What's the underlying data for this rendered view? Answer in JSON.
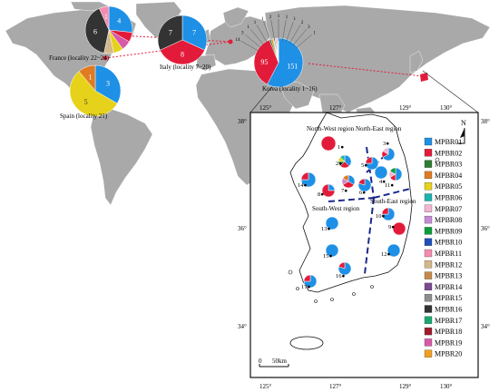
{
  "colors": {
    "MPBR01": "#1e90e6",
    "MPBR02": "#e31b3a",
    "MPBR03": "#2e7d32",
    "MPBR04": "#e07b22",
    "MPBR05": "#e6d21a",
    "MPBR06": "#1ab3b0",
    "MPBR07": "#f3b6d0",
    "MPBR08": "#c78ad6",
    "MPBR09": "#0b9d3a",
    "MPBR10": "#1f4fb8",
    "MPBR11": "#f48bb0",
    "MPBR12": "#d4b88a",
    "MPBR13": "#c58a4a",
    "MPBR14": "#7a4a8e",
    "MPBR15": "#8e8e8e",
    "MPBR16": "#333333",
    "MPBR17": "#18a870",
    "MPBR18": "#a01a2a",
    "MPBR19": "#d65aa8",
    "MPBR20": "#f0a020"
  },
  "legend": [
    "MPBR01",
    "MPBR02",
    "MPBR03",
    "MPBR04",
    "MPBR05",
    "MPBR06",
    "MPBR07",
    "MPBR08",
    "MPBR09",
    "MPBR10",
    "MPBR11",
    "MPBR12",
    "MPBR13",
    "MPBR14",
    "MPBR15",
    "MPBR16",
    "MPBR17",
    "MPBR18",
    "MPBR19",
    "MPBR20"
  ],
  "world_pies": {
    "france": {
      "label": "France (locality 22~24)",
      "slices": [
        {
          "hap": "MPBR01",
          "value": 4,
          "text": "4"
        },
        {
          "hap": "MPBR02",
          "value": 1,
          "text": ""
        },
        {
          "hap": "MPBR19",
          "value": 1,
          "text": ""
        },
        {
          "hap": "MPBR05",
          "value": 1,
          "text": ""
        },
        {
          "hap": "MPBR12",
          "value": 1,
          "text": ""
        },
        {
          "hap": "MPBR16",
          "value": 6,
          "text": "6"
        },
        {
          "hap": "MPBR11",
          "value": 1,
          "text": "1"
        }
      ]
    },
    "italy": {
      "label": "Italy (locality 7~20)",
      "slices": [
        {
          "hap": "MPBR01",
          "value": 7,
          "text": "7"
        },
        {
          "hap": "MPBR02",
          "value": 8,
          "text": "8"
        },
        {
          "hap": "MPBR16",
          "value": 7,
          "text": "7"
        }
      ]
    },
    "spain": {
      "label": "Spain (locality 21)",
      "slices": [
        {
          "hap": "MPBR01",
          "value": 3,
          "text": "3"
        },
        {
          "hap": "MPBR05",
          "value": 5,
          "text": "5"
        },
        {
          "hap": "MPBR04",
          "value": 1,
          "text": "1"
        }
      ]
    },
    "korea": {
      "label": "Korea (locality 1~16)",
      "slices": [
        {
          "hap": "MPBR01",
          "value": 151,
          "text": "151"
        },
        {
          "hap": "MPBR02",
          "value": 95,
          "text": "95"
        },
        {
          "hap": "MPBR03",
          "value": 3,
          "text": ""
        },
        {
          "hap": "MPBR04",
          "value": 3,
          "text": ""
        },
        {
          "hap": "MPBR05",
          "value": 2,
          "text": ""
        },
        {
          "hap": "MPBR06",
          "value": 2,
          "text": ""
        },
        {
          "hap": "MPBR08",
          "value": 2,
          "text": ""
        },
        {
          "hap": "MPBR11",
          "value": 2,
          "text": ""
        },
        {
          "hap": "MPBR09",
          "value": 1,
          "text": ""
        },
        {
          "hap": "MPBR12",
          "value": 1,
          "text": ""
        }
      ],
      "spoke_labels": [
        "14",
        "3",
        "1",
        "1",
        "1",
        "2",
        "1",
        "1",
        "1",
        "2",
        "3",
        "1"
      ]
    }
  },
  "korea_map": {
    "top_ticks": [
      "125°",
      "127°",
      "129°",
      "130°"
    ],
    "bottom_ticks": [
      "125°",
      "127°",
      "129°",
      "130°"
    ],
    "left_ticks": [
      "38°",
      "36°",
      "34°"
    ],
    "right_ticks": [
      "38°",
      "36°",
      "34°"
    ],
    "north_label": "N",
    "scale_labels": [
      "0",
      "50km"
    ],
    "regions": [
      "North-West region",
      "North-East region",
      "South-West region",
      "South-East region"
    ],
    "localities": [
      {
        "num": "1",
        "slices": [
          {
            "hap": "MPBR02",
            "value": 1
          }
        ]
      },
      {
        "num": "2",
        "slices": [
          {
            "hap": "MPBR01",
            "value": 3
          },
          {
            "hap": "MPBR02",
            "value": 2
          },
          {
            "hap": "MPBR03",
            "value": 1
          },
          {
            "hap": "MPBR05",
            "value": 1
          },
          {
            "hap": "MPBR06",
            "value": 1
          }
        ]
      },
      {
        "num": "3",
        "slices": [
          {
            "hap": "MPBR01",
            "value": 4
          },
          {
            "hap": "MPBR02",
            "value": 1
          },
          {
            "hap": "MPBR07",
            "value": 1
          }
        ]
      },
      {
        "num": "4",
        "slices": [
          {
            "hap": "MPBR01",
            "value": 1
          }
        ]
      },
      {
        "num": "5",
        "slices": [
          {
            "hap": "MPBR01",
            "value": 3
          },
          {
            "hap": "MPBR02",
            "value": 1
          }
        ]
      },
      {
        "num": "6",
        "slices": [
          {
            "hap": "MPBR01",
            "value": 4
          },
          {
            "hap": "MPBR02",
            "value": 1
          }
        ]
      },
      {
        "num": "7",
        "slices": [
          {
            "hap": "MPBR01",
            "value": 2
          },
          {
            "hap": "MPBR02",
            "value": 2
          },
          {
            "hap": "MPBR08",
            "value": 1
          },
          {
            "hap": "MPBR04",
            "value": 1
          }
        ]
      },
      {
        "num": "8",
        "slices": [
          {
            "hap": "MPBR01",
            "value": 1
          },
          {
            "hap": "MPBR02",
            "value": 3
          }
        ]
      },
      {
        "num": "9",
        "slices": [
          {
            "hap": "MPBR02",
            "value": 1
          }
        ]
      },
      {
        "num": "10",
        "slices": [
          {
            "hap": "MPBR01",
            "value": 3
          },
          {
            "hap": "MPBR02",
            "value": 1
          }
        ]
      },
      {
        "num": "11",
        "slices": [
          {
            "hap": "MPBR01",
            "value": 3
          },
          {
            "hap": "MPBR02",
            "value": 1
          },
          {
            "hap": "MPBR07",
            "value": 1
          },
          {
            "hap": "MPBR09",
            "value": 1
          }
        ]
      },
      {
        "num": "12",
        "slices": [
          {
            "hap": "MPBR01",
            "value": 1
          }
        ]
      },
      {
        "num": "13",
        "slices": [
          {
            "hap": "MPBR01",
            "value": 1
          }
        ]
      },
      {
        "num": "14",
        "slices": [
          {
            "hap": "MPBR01",
            "value": 3
          },
          {
            "hap": "MPBR02",
            "value": 1
          }
        ]
      },
      {
        "num": "15",
        "slices": [
          {
            "hap": "MPBR01",
            "value": 1
          }
        ]
      },
      {
        "num": "16",
        "slices": [
          {
            "hap": "MPBR01",
            "value": 4
          },
          {
            "hap": "MPBR02",
            "value": 1
          }
        ]
      },
      {
        "num": "17",
        "slices": [
          {
            "hap": "MPBR01",
            "value": 3
          },
          {
            "hap": "MPBR02",
            "value": 1
          }
        ]
      }
    ]
  }
}
